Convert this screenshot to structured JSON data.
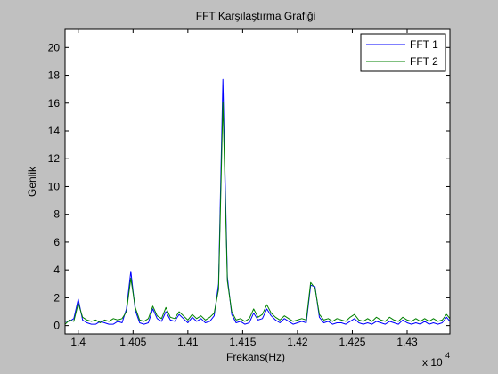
{
  "chart_data": {
    "type": "line",
    "title": "FFT Karşılaştırma Grafiği",
    "xlabel": "Frekans(Hz)",
    "ylabel": "Genlik",
    "x_multiplier_label": "x 10",
    "x_multiplier_exponent": "4",
    "xlim": [
      13988,
      14339
    ],
    "ylim": [
      -0.6,
      21.3
    ],
    "xticks": [
      14000,
      14050,
      14100,
      14150,
      14200,
      14250,
      14300
    ],
    "xtick_labels": [
      "1.4",
      "1.405",
      "1.41",
      "1.415",
      "1.42",
      "1.425",
      "1.43"
    ],
    "yticks": [
      0,
      2,
      4,
      6,
      8,
      10,
      12,
      14,
      16,
      18,
      20
    ],
    "ytick_labels": [
      "0",
      "2",
      "4",
      "6",
      "8",
      "10",
      "12",
      "14",
      "16",
      "18",
      "20"
    ],
    "grid": false,
    "legend_position": "top-right",
    "series": [
      {
        "name": "FFT 1",
        "color": "#0000ff",
        "x": [
          13988,
          13992,
          13996,
          14000,
          14004,
          14008,
          14012,
          14016,
          14020,
          14024,
          14028,
          14032,
          14036,
          14040,
          14044,
          14048,
          14052,
          14056,
          14060,
          14064,
          14068,
          14072,
          14076,
          14080,
          14084,
          14088,
          14092,
          14096,
          14100,
          14104,
          14108,
          14112,
          14116,
          14120,
          14124,
          14128,
          14132,
          14136,
          14140,
          14144,
          14148,
          14152,
          14156,
          14160,
          14164,
          14168,
          14172,
          14176,
          14180,
          14184,
          14188,
          14192,
          14196,
          14200,
          14204,
          14208,
          14212,
          14216,
          14220,
          14224,
          14228,
          14232,
          14236,
          14240,
          14244,
          14248,
          14252,
          14256,
          14260,
          14264,
          14268,
          14272,
          14276,
          14280,
          14284,
          14288,
          14292,
          14296,
          14300,
          14304,
          14308,
          14312,
          14316,
          14320,
          14324,
          14328,
          14332,
          14336,
          14339
        ],
        "y": [
          0.3,
          0.3,
          0.5,
          1.9,
          0.4,
          0.2,
          0.1,
          0.1,
          0.3,
          0.2,
          0.1,
          0.1,
          0.3,
          0.2,
          1.2,
          3.9,
          1.1,
          0.2,
          0.1,
          0.2,
          1.2,
          0.5,
          0.3,
          1.0,
          0.4,
          0.3,
          0.8,
          0.5,
          0.2,
          0.6,
          0.3,
          0.5,
          0.2,
          0.3,
          0.7,
          3.0,
          17.7,
          3.5,
          0.8,
          0.2,
          0.3,
          0.1,
          0.2,
          0.9,
          0.4,
          0.5,
          1.2,
          0.7,
          0.4,
          0.2,
          0.5,
          0.3,
          0.1,
          0.2,
          0.3,
          0.2,
          2.9,
          2.8,
          0.6,
          0.2,
          0.3,
          0.1,
          0.2,
          0.2,
          0.1,
          0.3,
          0.5,
          0.2,
          0.1,
          0.2,
          0.1,
          0.3,
          0.2,
          0.1,
          0.3,
          0.2,
          0.1,
          0.4,
          0.2,
          0.1,
          0.2,
          0.1,
          0.3,
          0.1,
          0.2,
          0.1,
          0.2,
          0.6,
          0.3
        ]
      },
      {
        "name": "FFT 2",
        "color": "#008000",
        "x": [
          13988,
          13992,
          13996,
          14000,
          14004,
          14008,
          14012,
          14016,
          14020,
          14024,
          14028,
          14032,
          14036,
          14040,
          14044,
          14048,
          14052,
          14056,
          14060,
          14064,
          14068,
          14072,
          14076,
          14080,
          14084,
          14088,
          14092,
          14096,
          14100,
          14104,
          14108,
          14112,
          14116,
          14120,
          14124,
          14128,
          14132,
          14136,
          14140,
          14144,
          14148,
          14152,
          14156,
          14160,
          14164,
          14168,
          14172,
          14176,
          14180,
          14184,
          14188,
          14192,
          14196,
          14200,
          14204,
          14208,
          14212,
          14216,
          14220,
          14224,
          14228,
          14232,
          14236,
          14240,
          14244,
          14248,
          14252,
          14256,
          14260,
          14264,
          14268,
          14272,
          14276,
          14280,
          14284,
          14288,
          14292,
          14296,
          14300,
          14304,
          14308,
          14312,
          14316,
          14320,
          14324,
          14328,
          14332,
          14336,
          14339
        ],
        "y": [
          0.1,
          0.4,
          0.3,
          1.6,
          0.6,
          0.4,
          0.3,
          0.4,
          0.2,
          0.4,
          0.3,
          0.5,
          0.4,
          0.5,
          1.0,
          3.4,
          1.3,
          0.4,
          0.3,
          0.5,
          1.4,
          0.7,
          0.5,
          1.3,
          0.6,
          0.5,
          1.0,
          0.7,
          0.4,
          0.8,
          0.5,
          0.7,
          0.4,
          0.6,
          0.9,
          2.6,
          16.1,
          3.2,
          1.0,
          0.4,
          0.5,
          0.3,
          0.5,
          1.2,
          0.6,
          0.8,
          1.5,
          0.9,
          0.6,
          0.4,
          0.7,
          0.5,
          0.3,
          0.4,
          0.5,
          0.4,
          3.1,
          2.7,
          0.8,
          0.4,
          0.5,
          0.3,
          0.5,
          0.4,
          0.3,
          0.6,
          0.8,
          0.4,
          0.3,
          0.5,
          0.3,
          0.6,
          0.4,
          0.3,
          0.6,
          0.4,
          0.3,
          0.6,
          0.4,
          0.3,
          0.5,
          0.3,
          0.5,
          0.3,
          0.5,
          0.3,
          0.4,
          0.8,
          0.5
        ]
      }
    ]
  }
}
